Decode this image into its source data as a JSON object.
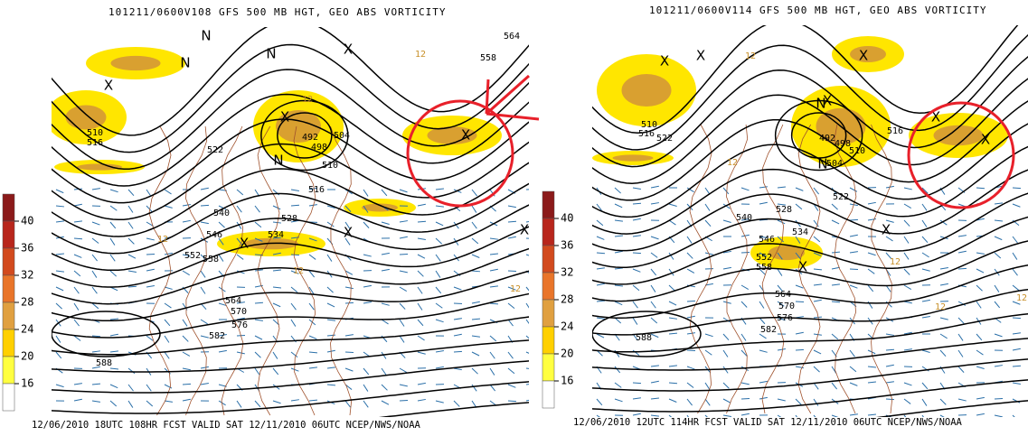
{
  "panels": [
    {
      "title": "101211/0600V108 GFS 500 MB HGT, GEO ABS VORTICITY",
      "footer": "12/06/2010 18UTC 108HR FCST VALID SAT 12/11/2010 06UTC NCEP/NWS/NOAA",
      "contour_labels": [
        "510",
        "516",
        "522",
        "492",
        "498",
        "504",
        "510",
        "516",
        "528",
        "534",
        "540",
        "546",
        "552",
        "558",
        "564",
        "570",
        "576",
        "582",
        "588",
        "564",
        "558"
      ]
    },
    {
      "title": "101211/0600V114 GFS 500 MB HGT, GEO ABS VORTICITY",
      "footer": "12/06/2010 12UTC 114HR FCST VALID SAT 12/11/2010 06UTC NCEP/NWS/NOAA",
      "contour_labels": [
        "510",
        "516",
        "522",
        "492",
        "498",
        "504",
        "510",
        "516",
        "522",
        "528",
        "534",
        "540",
        "546",
        "552",
        "558",
        "564",
        "570",
        "576",
        "582",
        "588"
      ]
    }
  ],
  "colorbar": {
    "labels": [
      "40",
      "36",
      "32",
      "28",
      "24",
      "20",
      "16"
    ]
  },
  "marker_labels": {
    "max": "X",
    "min": "N",
    "contour_value": "12"
  }
}
